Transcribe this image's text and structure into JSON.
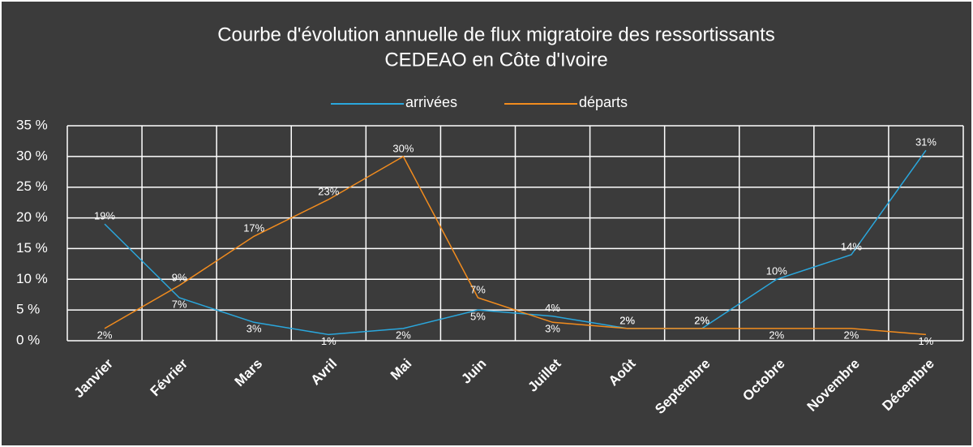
{
  "chart_data": {
    "type": "line",
    "title": [
      "Courbe d'évolution annuelle de flux migratoire des ressortissants",
      "CEDEAO en Côte d'Ivoire"
    ],
    "categories": [
      "Janvier",
      "Février",
      "Mars",
      "Avril",
      "Mai",
      "Juin",
      "Juillet",
      "Août",
      "Septembre",
      "Octobre",
      "Novembre",
      "Décembre"
    ],
    "series": [
      {
        "name": "arrivées",
        "color": "#2aa7dd",
        "values": [
          19,
          7,
          3,
          1,
          2,
          5,
          4,
          2,
          2,
          10,
          14,
          31
        ],
        "value_labels": [
          "19%",
          "7%",
          "3%",
          "1%",
          "2%",
          "5%",
          "4%",
          "2%",
          "2%",
          "10%",
          "14%",
          "31%"
        ]
      },
      {
        "name": "départs",
        "color": "#f28c1e",
        "values": [
          2,
          9,
          17,
          23,
          30,
          7,
          3,
          2,
          2,
          2,
          2,
          1
        ],
        "value_labels": [
          "2%",
          "9%",
          "17%",
          "23%",
          "30%",
          "7%",
          "3%",
          "2%",
          "2%",
          "2%",
          "2%",
          "1%"
        ]
      }
    ],
    "ylim": [
      0,
      35
    ],
    "yticks": [
      {
        "value": 0,
        "label": "0 %"
      },
      {
        "value": 5,
        "label": "5 %"
      },
      {
        "value": 10,
        "label": "10 %"
      },
      {
        "value": 15,
        "label": "15 %"
      },
      {
        "value": 20,
        "label": "20 %"
      },
      {
        "value": 25,
        "label": "25 %"
      },
      {
        "value": 30,
        "label": "30 %"
      },
      {
        "value": 35,
        "label": "35 %"
      }
    ],
    "grid": true,
    "legend": "top"
  }
}
